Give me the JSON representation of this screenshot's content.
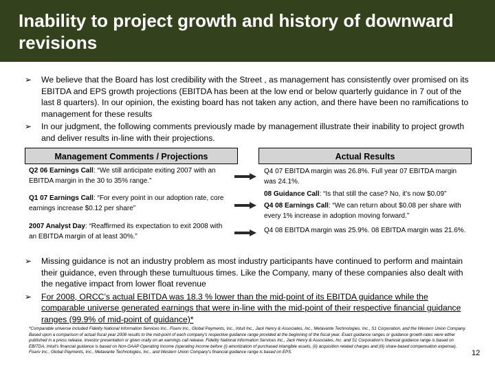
{
  "title": "Inability to project growth and history of downward revisions",
  "bullets_top": [
    "We believe that the Board has lost credibility with the Street , as management has consistently over promised on its EBITDA and EPS growth projections (EBITDA has been at the low end or below quarterly guidance in 7 out of the last 8 quarters).  In our opinion, the existing board has not taken any action, and there have been no ramifications to management for these results",
    "In our judgment, the following comments previously made by management illustrate their inability to project growth and deliver results in-line with their projections."
  ],
  "table": {
    "left_header": "Management Comments  / Projections",
    "right_header": "Actual Results",
    "comments": [
      {
        "label": "Q2 06 Earnings Call",
        "text": ": “We still anticipate exiting 2007 with an EBITDA margin in the 30 to 35% range.”"
      },
      {
        "label": "Q1 07 Earnings Call",
        "text": ": “For every point in our adoption rate, core earnings increase $0.12 per share”"
      },
      {
        "label": "2007 Analyst Day",
        "text": ": “Reaffirmed its expectation to exit 2008 with an EBITDA margin of at least 30%.”"
      }
    ],
    "results": [
      {
        "label": "",
        "text": "Q4 07 EBITDA margin was 26.8%.  Full year 07 EBITDA margin was 24.1%."
      },
      {
        "label": "08 Guidance Call",
        "text": ": “Is that still the case? No, it's now $0.09”"
      },
      {
        "label": "Q4 08 Earnings Call",
        "text": ": “We can return about $0.08 per share with every 1% increase in adoption moving forward.”"
      },
      {
        "label": "",
        "text": "Q4 08 EBITDA margin was 25.9%.  08 EBITDA margin was 21.6%."
      }
    ]
  },
  "bullets_bottom": [
    "Missing guidance is not an industry problem as most industry participants have continued to perform and maintain their guidance, even through these tumultuous times.  Like the Company, many of these companies also dealt with the negative impact from lower float revenue",
    "For 2008, ORCC’s actual EBITDA was 18.3 % lower than the mid-point of its EBITDA guidance while the comparable universe generated earnings that were in-line with the mid-point of their respective financial guidance ranges (99.9% of mid-point of guidance)*"
  ],
  "arrow_glyph": "➢",
  "footnote": "*Comparable universe included Fidelity National Information Services Inc., Fiserv Inc., Global Payments, Inc., Intuit Inc., Jack Henry & Associates, Inc., Metavante Technologies, Inc., S1 Corporation, and the Western Union Company.  Based upon a comparison of actual fiscal year 2008 results to the mid-point of each company's respective guidance range provided at the beginning of the fiscal year.  Exact guidance ranges or guidance growth rates were either published in a press release, investor presentation or given orally on an earnings call release.  Fidelity National Information Services Inc., Jack Henry & Associates, Inc. and S1 Corporation's financial guidance range is based on EBITDA, Intuit's financial guidance is based on Non-GAAP Operating Income (operating income before (i) amortization of purchased intangible assets, (ii) acquisition related charges and (iii) share-based compensation expense).  Fiserv Inc., Global Payments, Inc., Metavante Technologies, Inc., and Western Union Company's financial guidance range is based on EPS.",
  "page_number": "12",
  "colors": {
    "title_bg": "#33421c",
    "header_bg": "#d4d4d4",
    "arrow_fill": "#2a2a2a"
  }
}
